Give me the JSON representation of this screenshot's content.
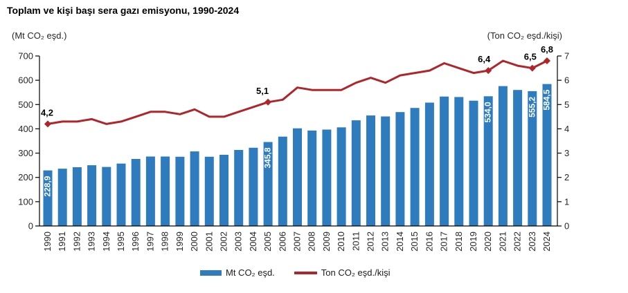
{
  "title": "Toplam ve kişi başı sera gazı emisyonu, 1990-2024",
  "colors": {
    "bar": "#2E7CBE",
    "line": "#B0252A",
    "text": "#262626",
    "bar_label": "#FFFFFF",
    "axis": "#000000"
  },
  "legend": {
    "items": [
      {
        "label": "Mt CO₂ eşd.",
        "swatch": "bar"
      },
      {
        "label": "Ton CO₂ eşd./kişi",
        "swatch": "line"
      }
    ]
  },
  "chart_data": {
    "type": "bar",
    "subtype": "combo-bar-line-dual-axis",
    "title": "Toplam ve kişi başı sera gazı emisyonu, 1990-2024",
    "categories": [
      1990,
      1991,
      1992,
      1993,
      1994,
      1995,
      1996,
      1997,
      1998,
      1999,
      2000,
      2001,
      2002,
      2003,
      2004,
      2005,
      2006,
      2007,
      2008,
      2009,
      2010,
      2011,
      2012,
      2013,
      2014,
      2015,
      2016,
      2017,
      2018,
      2019,
      2020,
      2021,
      2022,
      2023,
      2024
    ],
    "series": [
      {
        "name": "Mt CO₂ eşd.",
        "type": "bar",
        "axis": "left",
        "values": [
          228.9,
          236,
          242,
          250,
          243,
          257,
          276,
          286,
          286,
          285,
          307,
          285,
          293,
          313,
          322,
          345.8,
          368,
          402,
          393,
          397,
          406,
          435,
          455,
          451,
          469,
          486,
          508,
          533,
          531,
          516,
          534.0,
          576,
          560,
          555.2,
          584.5
        ]
      },
      {
        "name": "Ton CO₂ eşd./kişi",
        "type": "line",
        "axis": "right",
        "values": [
          4.2,
          4.3,
          4.3,
          4.4,
          4.2,
          4.3,
          4.5,
          4.7,
          4.7,
          4.6,
          4.8,
          4.5,
          4.5,
          4.7,
          4.9,
          5.1,
          5.2,
          5.7,
          5.6,
          5.6,
          5.6,
          5.9,
          6.1,
          5.9,
          6.2,
          6.3,
          6.4,
          6.7,
          6.5,
          6.3,
          6.4,
          6.8,
          6.6,
          6.5,
          6.8
        ]
      }
    ],
    "left_axis": {
      "title": "(Mt CO₂ eşd.)",
      "min": 0,
      "max": 700,
      "step": 100
    },
    "right_axis": {
      "title": "(Ton CO₂ eşd./kişi)",
      "min": 0,
      "max": 7,
      "step": 1
    },
    "point_labels": {
      "bar": [
        {
          "year": 1990,
          "text": "228,9"
        },
        {
          "year": 2005,
          "text": "345,8"
        },
        {
          "year": 2020,
          "text": "534,0"
        },
        {
          "year": 2023,
          "text": "555,2"
        },
        {
          "year": 2024,
          "text": "584,5"
        }
      ],
      "line": [
        {
          "year": 1990,
          "text": "4,2"
        },
        {
          "year": 2005,
          "text": "5,1"
        },
        {
          "year": 2020,
          "text": "6,4"
        },
        {
          "year": 2023,
          "text": "6,5"
        },
        {
          "year": 2024,
          "text": "6,8"
        }
      ]
    },
    "grid": false,
    "legend_position": "bottom"
  }
}
